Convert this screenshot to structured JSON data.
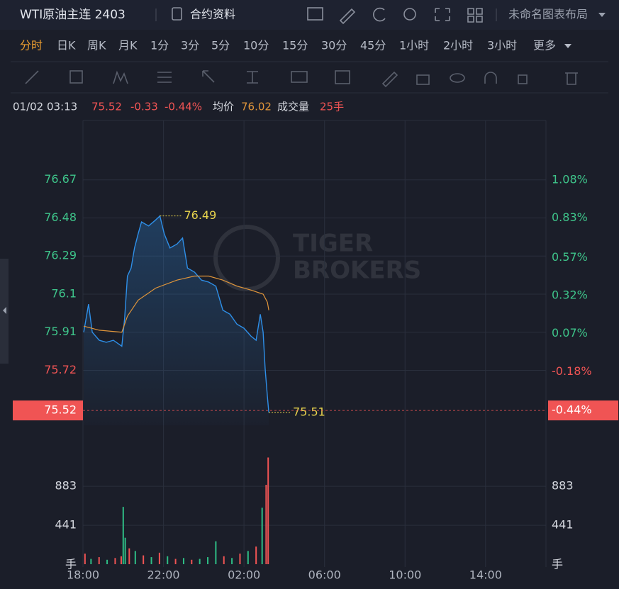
{
  "ui": {
    "symbol": "WTI原油主连 2403",
    "contract_info": "合约资料",
    "layout_name": "未命名图表布局",
    "timeframes": [
      "分时",
      "日K",
      "周K",
      "月K",
      "1分",
      "3分",
      "5分",
      "10分",
      "15分",
      "30分",
      "45分",
      "1小时",
      "2小时",
      "3小时",
      "更多"
    ],
    "info": {
      "time": "01/02 03:13",
      "price": "75.52",
      "change": "-0.33",
      "pct": "-0.44%",
      "avg_label": "均价",
      "avg": "76.02",
      "vol_label": "成交量",
      "vol": "25手"
    },
    "watermark": [
      "TIGER",
      "BROKERS"
    ]
  },
  "chart_data": [
    {
      "type": "line",
      "xlim": [
        0,
        23
      ],
      "xticks": [
        {
          "value": 0,
          "label": "18:00"
        },
        {
          "value": 4,
          "label": "22:00"
        },
        {
          "value": 8,
          "label": "02:00"
        },
        {
          "value": 12,
          "label": "06:00"
        },
        {
          "value": 16,
          "label": "10:00"
        },
        {
          "value": 20,
          "label": "14:00"
        }
      ],
      "ylim": [
        75.446,
        76.966
      ],
      "yticks": [
        76.67,
        76.48,
        76.29,
        76.1,
        75.91,
        75.72
      ],
      "y2lim": [
        -0.533,
        1.471
      ],
      "y2ticks": [
        {
          "value": 1.08,
          "label": "1.08%"
        },
        {
          "value": 0.83,
          "label": "0.83%"
        },
        {
          "value": 0.57,
          "label": "0.57%"
        },
        {
          "value": 0.32,
          "label": "0.32%"
        },
        {
          "value": 0.07,
          "label": "0.07%"
        },
        {
          "value": -0.18,
          "label": "-0.18%"
        }
      ],
      "grid": true,
      "series": [
        {
          "name": "price",
          "color": "#2e8fe8",
          "x": [
            0.04,
            0.28,
            0.46,
            0.81,
            1.16,
            1.51,
            1.93,
            2.07,
            2.21,
            2.39,
            2.56,
            2.74,
            2.91,
            3.26,
            3.61,
            3.82,
            4.04,
            4.32,
            4.67,
            4.95,
            5.19,
            5.54,
            5.89,
            6.25,
            6.6,
            6.95,
            7.3,
            7.65,
            8.0,
            8.35,
            8.6,
            8.81,
            8.95,
            9.05,
            9.16,
            9.23
          ],
          "values": [
            75.91,
            76.05,
            75.91,
            75.87,
            75.86,
            75.87,
            75.84,
            75.98,
            76.19,
            76.23,
            76.33,
            76.4,
            76.46,
            76.44,
            76.47,
            76.49,
            76.4,
            76.33,
            76.35,
            76.38,
            76.23,
            76.21,
            76.17,
            76.16,
            76.14,
            76.02,
            76.0,
            75.95,
            75.93,
            75.89,
            75.87,
            76.0,
            75.91,
            75.73,
            75.59,
            75.51
          ]
        },
        {
          "name": "avg",
          "color": "#e0953a",
          "x": [
            0.04,
            0.81,
            1.93,
            2.21,
            2.74,
            3.61,
            4.67,
            5.54,
            6.25,
            6.95,
            7.65,
            8.35,
            8.95,
            9.16,
            9.23
          ],
          "values": [
            75.94,
            75.92,
            75.91,
            75.99,
            76.07,
            76.13,
            76.17,
            76.19,
            76.19,
            76.17,
            76.14,
            76.12,
            76.1,
            76.06,
            76.02
          ]
        }
      ],
      "high": {
        "x": 3.82,
        "value": 76.49
      },
      "low": {
        "x": 9.23,
        "value": 75.51
      },
      "current_price": 75.52,
      "current_pct": {
        "value": -0.44,
        "label": "-0.44%"
      }
    },
    {
      "type": "bar",
      "ylim": [
        0,
        1254
      ],
      "yticks": [
        883,
        441
      ],
      "y_unit": "手",
      "x": [
        0.1,
        0.4,
        0.8,
        1.2,
        1.6,
        1.9,
        2.0,
        2.1,
        2.3,
        2.6,
        3.0,
        3.4,
        3.8,
        4.2,
        4.6,
        5.0,
        5.4,
        5.8,
        6.2,
        6.6,
        7.0,
        7.4,
        7.8,
        8.2,
        8.6,
        8.9,
        9.1,
        9.2
      ],
      "values": [
        120,
        60,
        80,
        50,
        70,
        90,
        650,
        300,
        180,
        150,
        100,
        80,
        130,
        90,
        60,
        70,
        50,
        60,
        80,
        260,
        90,
        70,
        120,
        150,
        200,
        640,
        900,
        1210
      ],
      "colors": [
        "#f05454",
        "#2ebd85",
        "#f05454",
        "#2ebd85",
        "#f05454",
        "#f05454",
        "#2ebd85",
        "#2ebd85",
        "#f05454",
        "#2ebd85",
        "#f05454",
        "#2ebd85",
        "#f05454",
        "#2ebd85",
        "#f05454",
        "#2ebd85",
        "#f05454",
        "#2ebd85",
        "#2ebd85",
        "#2ebd85",
        "#f05454",
        "#2ebd85",
        "#f05454",
        "#2ebd85",
        "#f05454",
        "#2ebd85",
        "#f05454",
        "#f05454"
      ]
    }
  ]
}
